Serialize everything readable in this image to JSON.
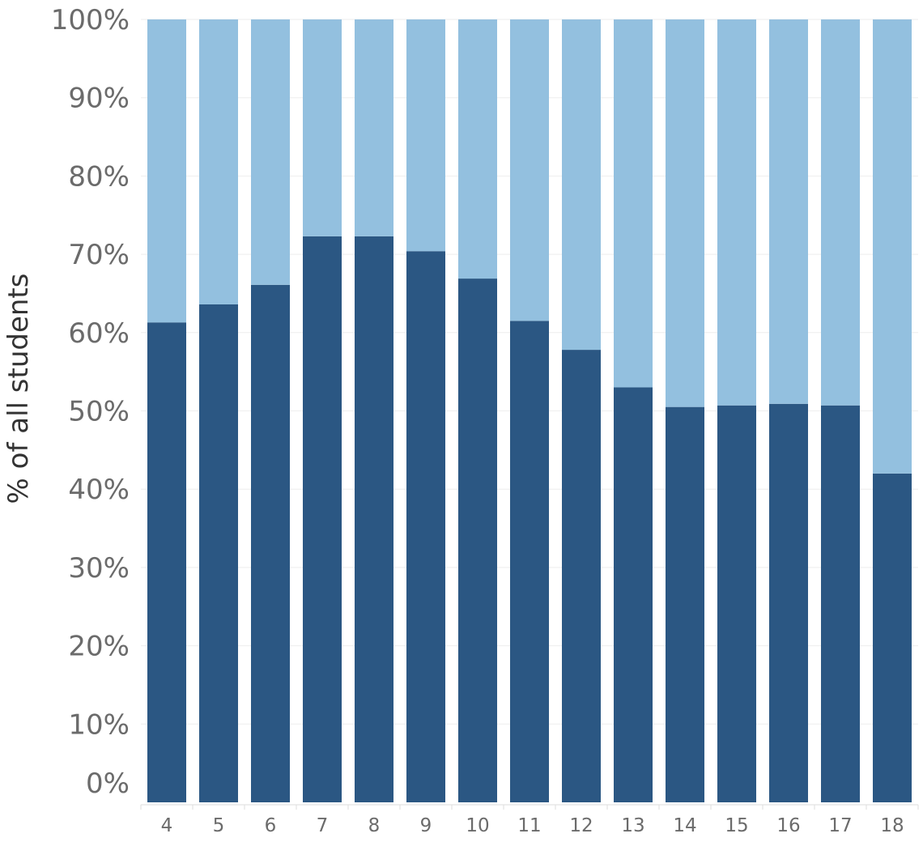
{
  "chart_data": {
    "type": "bar",
    "stacked": true,
    "categories": [
      "4",
      "5",
      "6",
      "7",
      "8",
      "9",
      "10",
      "11",
      "12",
      "13",
      "14",
      "15",
      "16",
      "17",
      "18"
    ],
    "series": [
      {
        "values": [
          61.3,
          63.6,
          66.1,
          72.3,
          72.3,
          70.4,
          66.9,
          61.5,
          57.8,
          53.0,
          50.5,
          50.7,
          50.9,
          50.7,
          42.0
        ]
      },
      {
        "values": [
          38.7,
          36.4,
          33.9,
          27.7,
          27.7,
          29.6,
          33.1,
          38.5,
          42.2,
          47.0,
          49.5,
          49.3,
          49.1,
          49.3,
          58.0
        ]
      }
    ],
    "title": "",
    "xlabel": "",
    "ylabel": "% of all students",
    "ylim": [
      0,
      100
    ],
    "yticks": [
      "0%",
      "10%",
      "20%",
      "30%",
      "40%",
      "50%",
      "60%",
      "70%",
      "80%",
      "90%",
      "100%"
    ],
    "grid": true,
    "colors": [
      "#2b5783",
      "#93c0df"
    ]
  }
}
